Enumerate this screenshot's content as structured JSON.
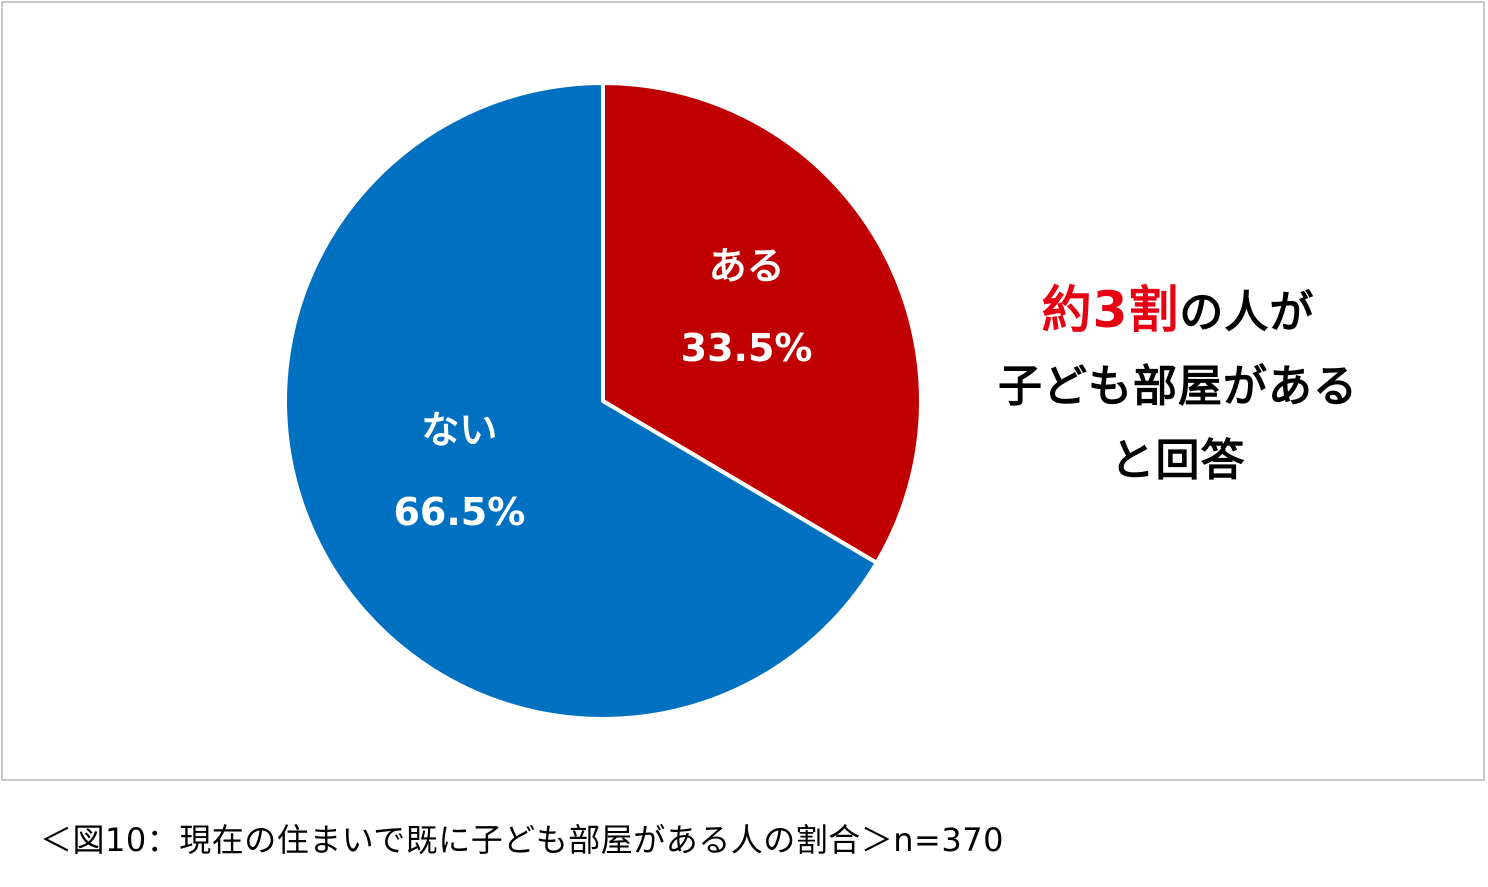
{
  "chart_data": {
    "type": "pie",
    "categories": [
      "ある",
      "ない"
    ],
    "values": [
      33.5,
      66.5
    ],
    "value_labels": [
      "33.5%",
      "66.5%"
    ],
    "colors": [
      "#c00000",
      "#0070c0"
    ],
    "start_angle": "12 o'clock",
    "direction": "clockwise"
  },
  "callout": {
    "highlight": "約3割",
    "line1_rest": "の人が",
    "line2": "子ども部屋がある",
    "line3": "と回答"
  },
  "caption": "＜図10：現在の住まいで既に子ども部屋がある人の割合＞n=370"
}
